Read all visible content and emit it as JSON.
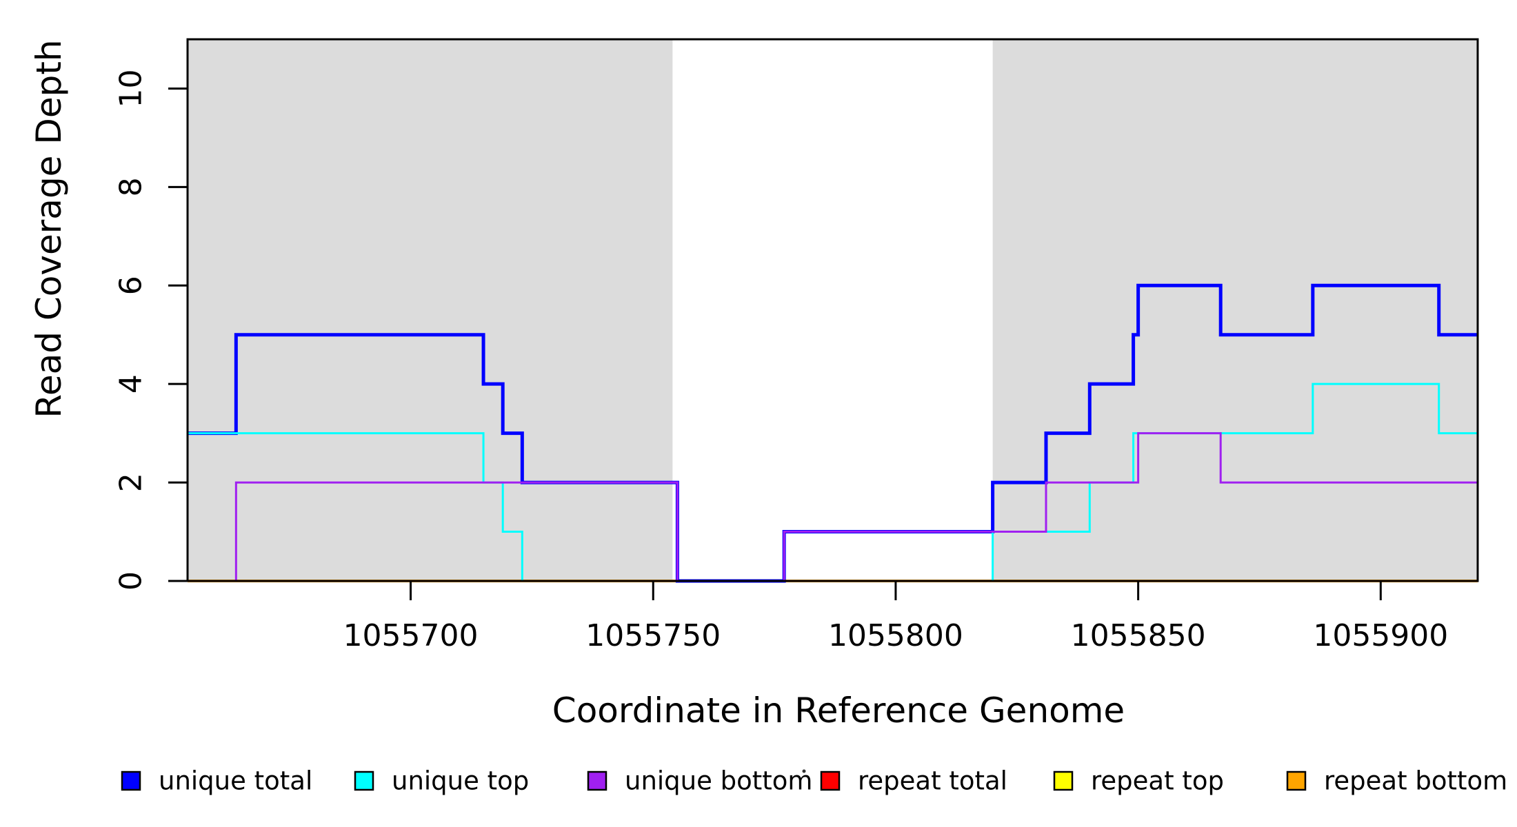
{
  "figure": {
    "background": "#ffffff",
    "text_color": "#000000"
  },
  "chart_data": {
    "type": "line",
    "subtype": "step-after",
    "title": "",
    "xlabel": "Coordinate in Reference Genome",
    "ylabel": "Read Coverage Depth",
    "xlim": [
      1055654,
      1055920
    ],
    "ylim": [
      0,
      11
    ],
    "x_ticks": [
      1055700,
      1055750,
      1055800,
      1055850,
      1055900
    ],
    "x_tick_labels": [
      "1055700",
      "1055750",
      "1055800",
      "1055850",
      "1055900"
    ],
    "y_ticks": [
      0,
      2,
      4,
      6,
      8,
      10
    ],
    "y_tick_labels": [
      "0",
      "2",
      "4",
      "6",
      "8",
      "10"
    ],
    "grid": false,
    "shading_color": "#DCDCDC",
    "shaded_regions": [
      {
        "x0": 1055654,
        "x1": 1055754
      },
      {
        "x0": 1055820,
        "x1": 1055920
      }
    ],
    "series": [
      {
        "name": "repeat total",
        "color": "#FF0000",
        "linewidth": 3,
        "steps": [
          [
            1055654,
            0
          ]
        ]
      },
      {
        "name": "repeat top",
        "color": "#FFFF00",
        "linewidth": 3,
        "steps": [
          [
            1055654,
            0
          ]
        ]
      },
      {
        "name": "repeat bottom",
        "color": "#FFA500",
        "linewidth": 4,
        "steps": [
          [
            1055654,
            0
          ]
        ]
      },
      {
        "name": "unique total",
        "color": "#0000FF",
        "linewidth": 5,
        "steps": [
          [
            1055654,
            3
          ],
          [
            1055664,
            5
          ],
          [
            1055715,
            4
          ],
          [
            1055719,
            3
          ],
          [
            1055723,
            2
          ],
          [
            1055755,
            0
          ],
          [
            1055777,
            1
          ],
          [
            1055820,
            2
          ],
          [
            1055831,
            3
          ],
          [
            1055840,
            4
          ],
          [
            1055849,
            5
          ],
          [
            1055850,
            6
          ],
          [
            1055867,
            5
          ],
          [
            1055886,
            6
          ],
          [
            1055912,
            5
          ]
        ]
      },
      {
        "name": "unique top",
        "color": "#00FFFF",
        "linewidth": 3,
        "steps": [
          [
            1055654,
            3
          ],
          [
            1055715,
            2
          ],
          [
            1055719,
            1
          ],
          [
            1055723,
            0
          ],
          [
            1055820,
            1
          ],
          [
            1055840,
            2
          ],
          [
            1055849,
            3
          ],
          [
            1055886,
            4
          ],
          [
            1055912,
            3
          ]
        ]
      },
      {
        "name": "unique bottom",
        "color": "#A020F0",
        "linewidth": 3,
        "steps": [
          [
            1055654,
            0
          ],
          [
            1055664,
            2
          ],
          [
            1055755,
            0
          ],
          [
            1055777,
            1
          ],
          [
            1055831,
            2
          ],
          [
            1055850,
            3
          ],
          [
            1055867,
            2
          ]
        ]
      }
    ],
    "legend_position": "bottom",
    "legend": [
      {
        "label": "unique total",
        "color": "#0000FF"
      },
      {
        "label": "unique top",
        "color": "#00FFFF"
      },
      {
        "label": "unique bottom",
        "color": "#A020F0"
      },
      {
        "label": "repeat total",
        "color": "#FF0000"
      },
      {
        "label": "repeat top",
        "color": "#FFFF00"
      },
      {
        "label": "repeat bottom",
        "color": "#FFA500"
      }
    ]
  }
}
